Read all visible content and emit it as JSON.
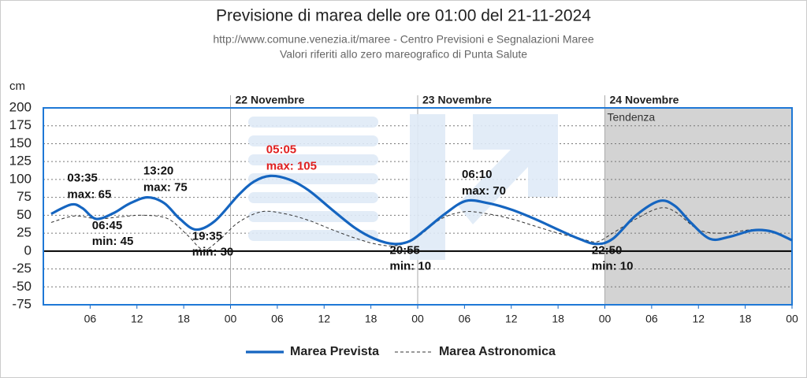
{
  "chart_data": {
    "type": "line",
    "title": "Previsione di marea delle ore 01:00 del 21-11-2024",
    "subtitle": [
      "http://www.comune.venezia.it/maree - Centro Previsioni e Segnalazioni Maree",
      "Valori riferiti allo zero mareografico di Punta Salute"
    ],
    "y_label": "cm",
    "xlim": [
      0,
      96
    ],
    "ylim": [
      -75,
      200
    ],
    "yticks": [
      -75,
      -50,
      -25,
      0,
      25,
      50,
      75,
      100,
      125,
      150,
      175,
      200
    ],
    "xticks": [
      {
        "value": 6,
        "label": "06"
      },
      12,
      18,
      {
        "value": 24,
        "label": "00"
      },
      {
        "value": 30,
        "label": "06"
      },
      {
        "value": 36,
        "label": "12"
      },
      {
        "value": 42,
        "label": "18"
      },
      {
        "value": 48,
        "label": "00"
      },
      {
        "value": 54,
        "label": "06"
      },
      {
        "value": 60,
        "label": "12"
      },
      {
        "value": 66,
        "label": "18"
      },
      {
        "value": 72,
        "label": "00"
      },
      {
        "value": 78,
        "label": "06"
      },
      {
        "value": 84,
        "label": "12"
      },
      {
        "value": 90,
        "label": "18"
      },
      {
        "value": 96,
        "label": "00"
      }
    ],
    "day_labels": [
      {
        "x": 24,
        "label": "22 Novembre"
      },
      {
        "x": 48,
        "label": "23 Novembre"
      },
      {
        "x": 72,
        "label": "24 Novembre"
      }
    ],
    "shaded": {
      "from": 72,
      "to": 96,
      "label": "Tendenza",
      "color": "#d3d3d3"
    },
    "grid": true,
    "legend": "bottom",
    "series": [
      {
        "name": "Marea Prevista",
        "color": "#1565c0",
        "dashed": false,
        "x": [
          1,
          3.58,
          5,
          6.75,
          9,
          11,
          13.33,
          15.5,
          17.5,
          19.58,
          22,
          25,
          27,
          29.08,
          31.5,
          34,
          37,
          40,
          42.5,
          44.92,
          47,
          49,
          51.5,
          54.17,
          57,
          60,
          63,
          66,
          68.5,
          70.83,
          73,
          76,
          79,
          81,
          83,
          85.5,
          88,
          91,
          93.5,
          96
        ],
        "values": [
          52,
          65,
          60,
          45,
          53,
          66,
          75,
          67,
          45,
          30,
          42,
          78,
          97,
          105,
          100,
          85,
          58,
          32,
          17,
          10,
          14,
          30,
          52,
          70,
          67,
          58,
          45,
          30,
          18,
          10,
          17,
          50,
          70,
          63,
          40,
          17,
          20,
          29,
          27,
          15
        ]
      },
      {
        "name": "Marea Astronomica",
        "color": "#333333",
        "dashed": true,
        "x": [
          1,
          4,
          7,
          10,
          13,
          16,
          18.5,
          20.5,
          22.5,
          25,
          28,
          31,
          34,
          37,
          40,
          43,
          45.5,
          48,
          51,
          54,
          57,
          60,
          63,
          66,
          69,
          71,
          73,
          76,
          79,
          81,
          84,
          87,
          91,
          93.5,
          96
        ],
        "values": [
          40,
          49,
          45,
          48,
          50,
          45,
          22,
          2,
          15,
          40,
          55,
          52,
          43,
          30,
          18,
          9,
          8,
          20,
          45,
          55,
          52,
          45,
          35,
          25,
          17,
          13,
          25,
          45,
          60,
          55,
          30,
          25,
          30,
          27,
          15
        ]
      }
    ],
    "annotations": [
      {
        "time": "03:35",
        "label": "max: 65",
        "x": 3.58,
        "y": 65,
        "color": "#111111"
      },
      {
        "time": "06:45",
        "label": "min: 45",
        "x": 6.75,
        "y": 45,
        "color": "#111111"
      },
      {
        "time": "13:20",
        "label": "max: 75",
        "x": 13.33,
        "y": 75,
        "color": "#111111"
      },
      {
        "time": "19:35",
        "label": "min: 30",
        "x": 19.58,
        "y": 30,
        "color": "#111111"
      },
      {
        "time": "05:05",
        "label": "max: 105",
        "x": 29.08,
        "y": 105,
        "color": "#e02020"
      },
      {
        "time": "20:55",
        "label": "min: 10",
        "x": 44.92,
        "y": 10,
        "color": "#111111"
      },
      {
        "time": "06:10",
        "label": "max: 70",
        "x": 54.17,
        "y": 70,
        "color": "#111111"
      },
      {
        "time": "22:50",
        "label": "min: 10",
        "x": 70.83,
        "y": 10,
        "color": "#111111"
      }
    ]
  }
}
